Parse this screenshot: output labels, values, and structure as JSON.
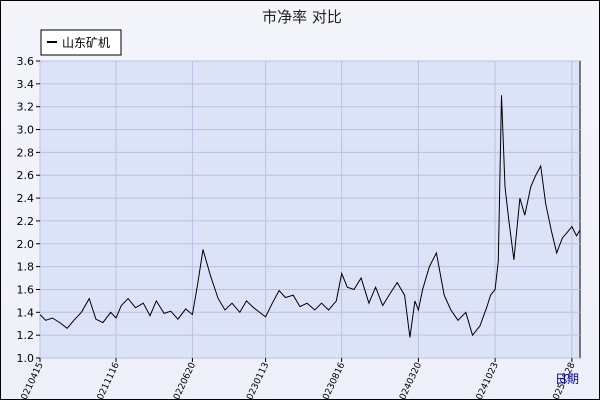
{
  "chart_data": {
    "type": "line",
    "title": "市净率  对比",
    "xlabel": "日期",
    "ylabel": "",
    "ylim": [
      1.0,
      3.6
    ],
    "yticks": [
      "1.0",
      "1.2",
      "1.4",
      "1.6",
      "1.8",
      "2.0",
      "2.2",
      "2.4",
      "2.6",
      "2.8",
      "3.0",
      "3.2",
      "3.4",
      "3.6"
    ],
    "xticks": [
      "20210415",
      "20211116",
      "20220620",
      "20230113",
      "20230816",
      "20240320",
      "20241023",
      "20250528"
    ],
    "x_range": [
      "20210415",
      "20250620"
    ],
    "grid": true,
    "legend_position": "top-left",
    "series": [
      {
        "name": "山东矿机",
        "color": "#000000",
        "x": [
          "20210415",
          "20210501",
          "20210520",
          "20210610",
          "20210701",
          "20210720",
          "20210810",
          "20210901",
          "20210920",
          "20211010",
          "20211101",
          "20211116",
          "20211201",
          "20211220",
          "20220110",
          "20220201",
          "20220220",
          "20220310",
          "20220401",
          "20220420",
          "20220510",
          "20220601",
          "20220620",
          "20220705",
          "20220720",
          "20220810",
          "20220901",
          "20220920",
          "20221010",
          "20221101",
          "20221120",
          "20221210",
          "20230113",
          "20230201",
          "20230220",
          "20230310",
          "20230401",
          "20230420",
          "20230510",
          "20230601",
          "20230620",
          "20230710",
          "20230801",
          "20230816",
          "20230901",
          "20230920",
          "20231010",
          "20231101",
          "20231120",
          "20231210",
          "20240101",
          "20240120",
          "20240210",
          "20240225",
          "20240310",
          "20240320",
          "20240401",
          "20240420",
          "20240510",
          "20240601",
          "20240620",
          "20240710",
          "20240801",
          "20240820",
          "20240910",
          "20240930",
          "20241010",
          "20241023",
          "20241101",
          "20241110",
          "20241120",
          "20241201",
          "20241215",
          "20250101",
          "20250115",
          "20250201",
          "20250215",
          "20250301",
          "20250315",
          "20250401",
          "20250415",
          "20250501",
          "20250515",
          "20250528",
          "20250610",
          "20250620"
        ],
        "y": [
          1.38,
          1.33,
          1.35,
          1.31,
          1.26,
          1.33,
          1.4,
          1.52,
          1.34,
          1.31,
          1.4,
          1.35,
          1.46,
          1.52,
          1.44,
          1.48,
          1.37,
          1.5,
          1.39,
          1.41,
          1.34,
          1.43,
          1.38,
          1.65,
          1.95,
          1.72,
          1.52,
          1.42,
          1.48,
          1.4,
          1.5,
          1.44,
          1.36,
          1.48,
          1.59,
          1.53,
          1.55,
          1.45,
          1.48,
          1.42,
          1.48,
          1.42,
          1.5,
          1.74,
          1.62,
          1.6,
          1.7,
          1.48,
          1.62,
          1.46,
          1.57,
          1.66,
          1.55,
          1.18,
          1.5,
          1.42,
          1.6,
          1.8,
          1.92,
          1.55,
          1.42,
          1.33,
          1.4,
          1.2,
          1.28,
          1.45,
          1.55,
          1.6,
          1.85,
          3.3,
          2.5,
          2.2,
          1.86,
          2.4,
          2.25,
          2.5,
          2.6,
          2.68,
          2.35,
          2.1,
          1.92,
          2.05,
          2.1,
          2.15,
          2.07,
          2.12
        ]
      }
    ]
  }
}
